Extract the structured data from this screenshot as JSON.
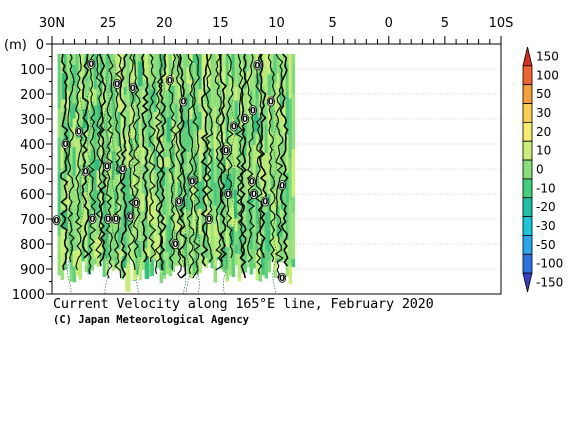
{
  "chart_data": {
    "type": "heatmap",
    "title": "Current Velocity along 165°E line, February 2020",
    "credit": "(C) Japan Meteorological Agency",
    "ylabel": "(m)",
    "x_ticks": [
      "30N",
      "25",
      "20",
      "15",
      "10",
      "5",
      "0",
      "5",
      "10S"
    ],
    "x_tick_lat": [
      30,
      25,
      20,
      15,
      10,
      5,
      0,
      -5,
      -10
    ],
    "xlim": [
      30,
      -10
    ],
    "y_ticks": [
      "0",
      "100",
      "200",
      "300",
      "400",
      "500",
      "600",
      "700",
      "800",
      "900",
      "1000"
    ],
    "y_tick_depth": [
      0,
      100,
      200,
      300,
      400,
      500,
      600,
      700,
      800,
      900,
      1000
    ],
    "ylim": [
      0,
      1000
    ],
    "data_lat_range": [
      29.5,
      8.5
    ],
    "data_depth_range": [
      40,
      960
    ],
    "colorbar": {
      "labels": [
        "150",
        "100",
        "50",
        "30",
        "20",
        "10",
        "0",
        "-10",
        "-20",
        "-30",
        "-50",
        "-100",
        "-150"
      ],
      "levels": [
        150,
        100,
        50,
        30,
        20,
        10,
        0,
        -10,
        -20,
        -30,
        -50,
        -100,
        -150
      ],
      "colors": [
        "#d7301f",
        "#f0642d",
        "#f8a13a",
        "#fbce4d",
        "#f8ec6b",
        "#c9ef74",
        "#88e07a",
        "#3fd17c",
        "#1bc2a3",
        "#18c7d8",
        "#2aa7ec",
        "#2a72e0",
        "#3840c8"
      ]
    },
    "zero_contour_labels": [
      {
        "lat": 26.5,
        "depth": 80,
        "text": "0"
      },
      {
        "lat": 24.2,
        "depth": 160,
        "text": "0"
      },
      {
        "lat": 22.8,
        "depth": 175,
        "text": "0"
      },
      {
        "lat": 19.5,
        "depth": 145,
        "text": "0"
      },
      {
        "lat": 18.3,
        "depth": 230,
        "text": "0"
      },
      {
        "lat": 11.7,
        "depth": 85,
        "text": "0"
      },
      {
        "lat": 10.5,
        "depth": 230,
        "text": "0"
      },
      {
        "lat": 12.1,
        "depth": 265,
        "text": "0"
      },
      {
        "lat": 12.8,
        "depth": 300,
        "text": "0"
      },
      {
        "lat": 13.8,
        "depth": 330,
        "text": "0"
      },
      {
        "lat": 27.6,
        "depth": 350,
        "text": "0"
      },
      {
        "lat": 28.8,
        "depth": 400,
        "text": "0"
      },
      {
        "lat": 14.5,
        "depth": 425,
        "text": "0"
      },
      {
        "lat": 25.1,
        "depth": 490,
        "text": "0"
      },
      {
        "lat": 23.7,
        "depth": 500,
        "text": "0"
      },
      {
        "lat": 27.0,
        "depth": 510,
        "text": "0"
      },
      {
        "lat": 17.5,
        "depth": 550,
        "text": "0"
      },
      {
        "lat": 12.2,
        "depth": 550,
        "text": "0"
      },
      {
        "lat": 14.3,
        "depth": 600,
        "text": "0"
      },
      {
        "lat": 12.0,
        "depth": 600,
        "text": "0"
      },
      {
        "lat": 9.5,
        "depth": 565,
        "text": "0"
      },
      {
        "lat": 22.5,
        "depth": 635,
        "text": "0"
      },
      {
        "lat": 18.7,
        "depth": 630,
        "text": "0"
      },
      {
        "lat": 11.0,
        "depth": 630,
        "text": "0"
      },
      {
        "lat": 29.6,
        "depth": 705,
        "text": "0"
      },
      {
        "lat": 26.4,
        "depth": 700,
        "text": "0"
      },
      {
        "lat": 25.0,
        "depth": 700,
        "text": "0"
      },
      {
        "lat": 24.3,
        "depth": 700,
        "text": "0"
      },
      {
        "lat": 23.0,
        "depth": 690,
        "text": "0"
      },
      {
        "lat": 16.0,
        "depth": 700,
        "text": "0"
      },
      {
        "lat": 19.0,
        "depth": 800,
        "text": "0"
      },
      {
        "lat": 9.5,
        "depth": 935,
        "text": "0"
      }
    ]
  }
}
